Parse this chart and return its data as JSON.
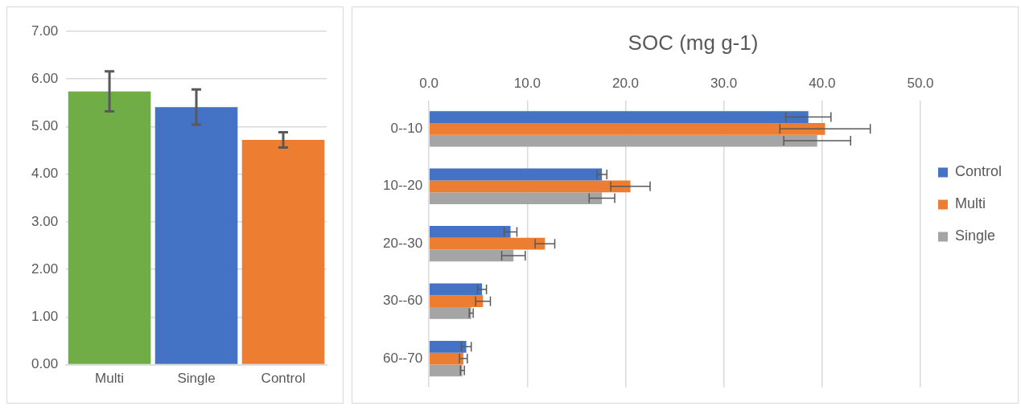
{
  "chart_data": [
    {
      "type": "bar",
      "categories": [
        "Multi",
        "Single",
        "Control"
      ],
      "values": [
        5.74,
        5.41,
        4.72
      ],
      "colors": [
        "#70ad47",
        "#4472c4",
        "#ed7d31"
      ],
      "errors": [
        0.42,
        0.37,
        0.16
      ],
      "ylim": [
        0,
        7
      ],
      "yticks": [
        {
          "value": 0,
          "label": "0.00"
        },
        {
          "value": 1,
          "label": "1.00"
        },
        {
          "value": 2,
          "label": "2.00"
        },
        {
          "value": 3,
          "label": "3.00"
        },
        {
          "value": 4,
          "label": "4.00"
        },
        {
          "value": 5,
          "label": "5.00"
        },
        {
          "value": 6,
          "label": "6.00"
        },
        {
          "value": 7,
          "label": "7.00"
        }
      ],
      "grid": "y",
      "legend": false
    },
    {
      "type": "bar",
      "orientation": "horizontal",
      "title": "SOC (mg g-1)",
      "categories": [
        "0--10",
        "10--20",
        "20--30",
        "30--60",
        "60--70"
      ],
      "series": [
        {
          "name": "Control",
          "color": "#4472c4",
          "values": [
            38.6,
            17.6,
            8.3,
            5.4,
            3.8
          ],
          "errors": [
            2.3,
            0.5,
            0.65,
            0.45,
            0.5
          ]
        },
        {
          "name": "Multi",
          "color": "#ed7d31",
          "values": [
            40.3,
            20.5,
            11.8,
            5.5,
            3.5
          ],
          "errors": [
            4.6,
            2.0,
            1.0,
            0.75,
            0.4
          ]
        },
        {
          "name": "Single",
          "color": "#a5a5a5",
          "values": [
            39.5,
            17.6,
            8.6,
            4.3,
            3.4
          ],
          "errors": [
            3.4,
            1.3,
            1.2,
            0.2,
            0.2
          ]
        }
      ],
      "xlim": [
        0,
        50
      ],
      "xticks": [
        {
          "value": 0,
          "label": "0.0"
        },
        {
          "value": 10,
          "label": "10.0"
        },
        {
          "value": 20,
          "label": "20.0"
        },
        {
          "value": 30,
          "label": "30.0"
        },
        {
          "value": 40,
          "label": "40.0"
        },
        {
          "value": 50,
          "label": "50.0"
        }
      ],
      "grid": "x",
      "legend": "right"
    }
  ]
}
